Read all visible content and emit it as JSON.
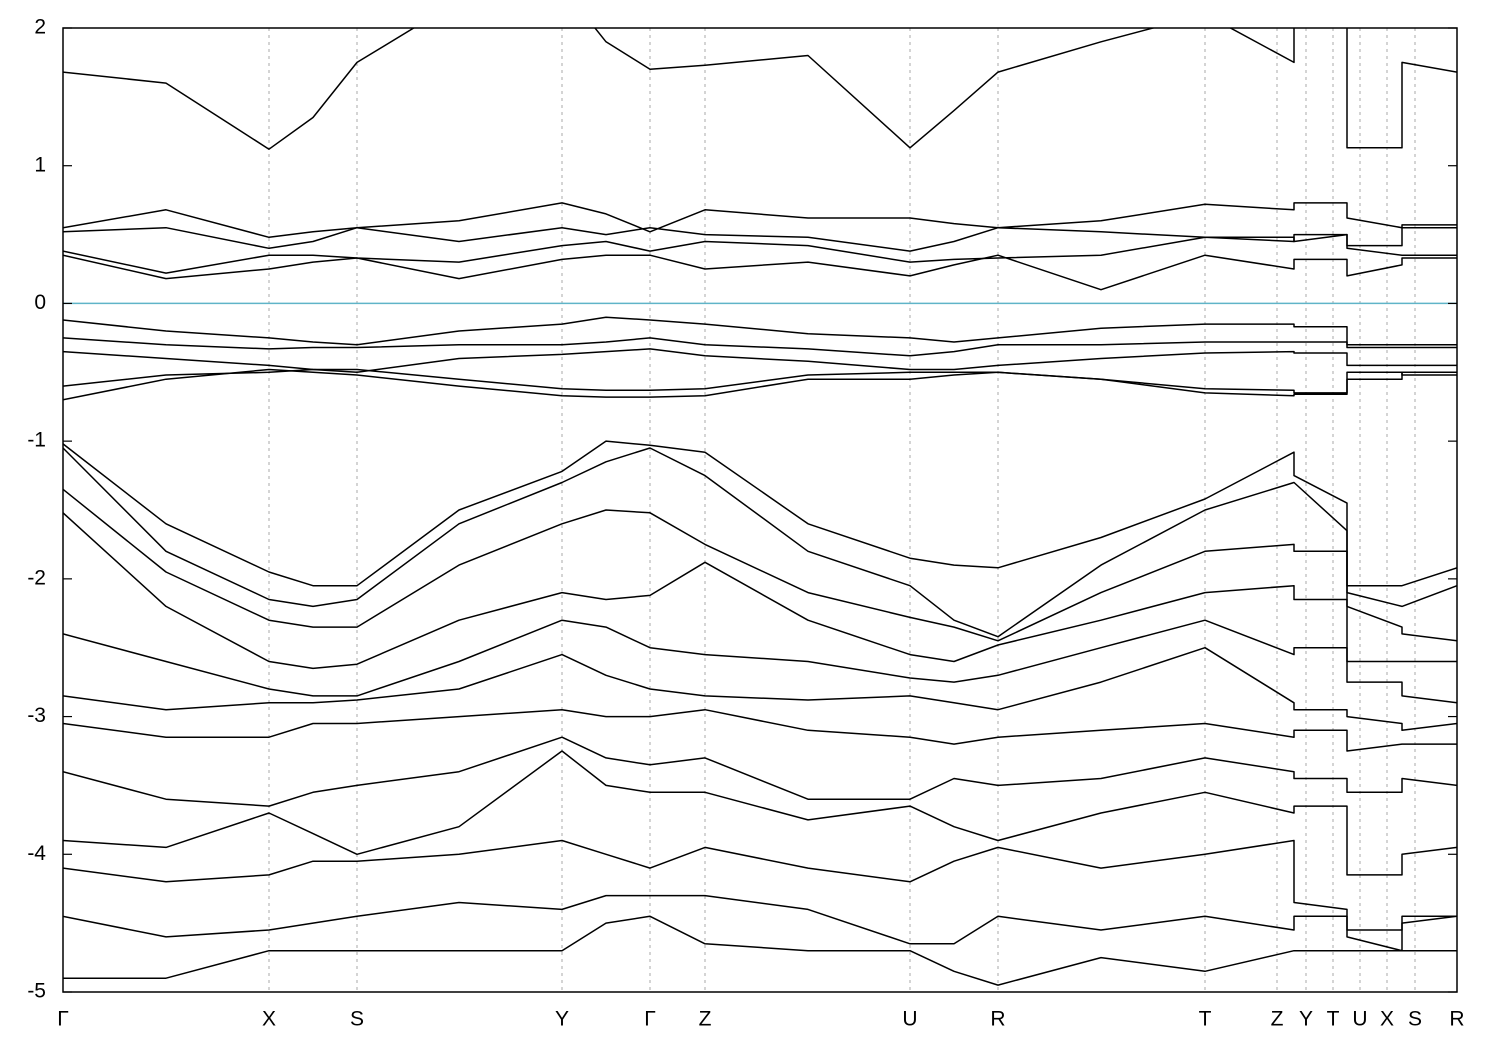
{
  "chart_data": {
    "type": "line",
    "xlim": [
      0,
      13.94
    ],
    "ylim": [
      -5,
      2
    ],
    "yticks": [
      -5,
      -4,
      -3,
      -2,
      -1,
      0,
      1,
      2
    ],
    "xticks": [
      {
        "value": 0,
        "label": "Γ"
      },
      {
        "value": 2.06,
        "label": "X"
      },
      {
        "value": 2.94,
        "label": "S"
      },
      {
        "value": 4.99,
        "label": "Y"
      },
      {
        "value": 5.87,
        "label": "Γ"
      },
      {
        "value": 6.42,
        "label": "Z"
      },
      {
        "value": 8.47,
        "label": "U"
      },
      {
        "value": 9.35,
        "label": "R"
      },
      {
        "value": 11.42,
        "label": "T"
      },
      {
        "value": 12.14,
        "label": "Z"
      },
      {
        "value": 12.43,
        "label": "Y"
      },
      {
        "value": 12.7,
        "label": "T"
      },
      {
        "value": 12.97,
        "label": "U"
      },
      {
        "value": 13.24,
        "label": "X"
      },
      {
        "value": 13.52,
        "label": "S"
      },
      {
        "value": 13.94,
        "label": "R"
      }
    ],
    "grid": true,
    "reference_line": 0,
    "reference_color": "#5fb4c8",
    "x": [
      0,
      1.03,
      2.06,
      2.5,
      2.94,
      3.96,
      4.99,
      5.43,
      5.87,
      6.42,
      7.45,
      8.47,
      8.91,
      9.35,
      10.38,
      11.42,
      12.31,
      12.31,
      12.84,
      12.84,
      13.39,
      13.39,
      13.94
    ],
    "series": [
      {
        "color": "#000000",
        "values": [
          1.68,
          1.6,
          1.12,
          1.35,
          1.75,
          2.2,
          2.3,
          1.9,
          1.7,
          1.73,
          1.8,
          1.13,
          1.4,
          1.68,
          1.9,
          2.1,
          1.75,
          2.2,
          2.2,
          1.13,
          1.13,
          1.75,
          1.68
        ]
      },
      {
        "color": "#000000",
        "values": [
          0.55,
          0.68,
          0.48,
          0.52,
          0.55,
          0.6,
          0.73,
          0.65,
          0.52,
          0.68,
          0.62,
          0.62,
          0.58,
          0.55,
          0.6,
          0.72,
          0.68,
          0.73,
          0.73,
          0.62,
          0.55,
          0.57,
          0.57
        ]
      },
      {
        "color": "#000000",
        "values": [
          0.52,
          0.55,
          0.4,
          0.45,
          0.55,
          0.45,
          0.55,
          0.5,
          0.55,
          0.5,
          0.48,
          0.38,
          0.45,
          0.55,
          0.52,
          0.48,
          0.48,
          0.45,
          0.5,
          0.42,
          0.42,
          0.55,
          0.55
        ]
      },
      {
        "color": "#000000",
        "values": [
          0.38,
          0.22,
          0.35,
          0.35,
          0.33,
          0.3,
          0.42,
          0.45,
          0.38,
          0.45,
          0.42,
          0.3,
          0.32,
          0.33,
          0.35,
          0.48,
          0.45,
          0.5,
          0.5,
          0.4,
          0.35,
          0.35,
          0.35
        ]
      },
      {
        "color": "#000000",
        "values": [
          0.35,
          0.18,
          0.25,
          0.3,
          0.33,
          0.18,
          0.32,
          0.35,
          0.35,
          0.25,
          0.3,
          0.2,
          0.28,
          0.35,
          0.1,
          0.35,
          0.25,
          0.32,
          0.32,
          0.2,
          0.28,
          0.33,
          0.33
        ]
      },
      {
        "color": "#000000",
        "values": [
          -0.12,
          -0.2,
          -0.25,
          -0.28,
          -0.3,
          -0.2,
          -0.15,
          -0.1,
          -0.12,
          -0.15,
          -0.22,
          -0.25,
          -0.28,
          -0.25,
          -0.18,
          -0.15,
          -0.15,
          -0.17,
          -0.17,
          -0.3,
          -0.3,
          -0.3,
          -0.3
        ]
      },
      {
        "color": "#000000",
        "values": [
          -0.25,
          -0.3,
          -0.33,
          -0.32,
          -0.32,
          -0.3,
          -0.3,
          -0.28,
          -0.25,
          -0.3,
          -0.33,
          -0.38,
          -0.35,
          -0.3,
          -0.3,
          -0.28,
          -0.28,
          -0.28,
          -0.28,
          -0.32,
          -0.32,
          -0.32,
          -0.32
        ]
      },
      {
        "color": "#000000",
        "values": [
          -0.35,
          -0.4,
          -0.45,
          -0.48,
          -0.5,
          -0.4,
          -0.37,
          -0.35,
          -0.33,
          -0.38,
          -0.42,
          -0.48,
          -0.48,
          -0.45,
          -0.4,
          -0.36,
          -0.35,
          -0.36,
          -0.36,
          -0.45,
          -0.45,
          -0.45,
          -0.45
        ]
      },
      {
        "color": "#000000",
        "values": [
          -0.6,
          -0.52,
          -0.5,
          -0.48,
          -0.48,
          -0.55,
          -0.62,
          -0.63,
          -0.63,
          -0.62,
          -0.52,
          -0.5,
          -0.5,
          -0.5,
          -0.55,
          -0.62,
          -0.63,
          -0.65,
          -0.65,
          -0.5,
          -0.5,
          -0.52,
          -0.52
        ]
      },
      {
        "color": "#000000",
        "values": [
          -0.7,
          -0.55,
          -0.48,
          -0.5,
          -0.52,
          -0.6,
          -0.67,
          -0.68,
          -0.68,
          -0.67,
          -0.55,
          -0.55,
          -0.52,
          -0.5,
          -0.55,
          -0.65,
          -0.67,
          -0.66,
          -0.66,
          -0.55,
          -0.55,
          -0.5,
          -0.5
        ]
      },
      {
        "color": "#000000",
        "values": [
          -1.02,
          -1.6,
          -1.95,
          -2.05,
          -2.05,
          -1.5,
          -1.22,
          -1.0,
          -1.03,
          -1.08,
          -1.6,
          -1.85,
          -1.9,
          -1.92,
          -1.7,
          -1.42,
          -1.08,
          -1.25,
          -1.45,
          -2.05,
          -2.05,
          -2.05,
          -1.92
        ]
      },
      {
        "color": "#000000",
        "values": [
          -1.05,
          -1.8,
          -2.15,
          -2.2,
          -2.15,
          -1.6,
          -1.3,
          -1.15,
          -1.05,
          -1.25,
          -1.8,
          -2.05,
          -2.3,
          -2.42,
          -1.9,
          -1.5,
          -1.3,
          -1.3,
          -1.65,
          -2.1,
          -2.2,
          -2.2,
          -2.05
        ]
      },
      {
        "color": "#000000",
        "values": [
          -1.35,
          -1.95,
          -2.3,
          -2.35,
          -2.35,
          -1.9,
          -1.6,
          -1.5,
          -1.52,
          -1.75,
          -2.1,
          -2.28,
          -2.35,
          -2.45,
          -2.1,
          -1.8,
          -1.75,
          -1.8,
          -1.8,
          -2.2,
          -2.35,
          -2.4,
          -2.45
        ]
      },
      {
        "color": "#000000",
        "values": [
          -1.52,
          -2.2,
          -2.6,
          -2.65,
          -2.62,
          -2.3,
          -2.1,
          -2.15,
          -2.12,
          -1.88,
          -2.3,
          -2.55,
          -2.6,
          -2.48,
          -2.3,
          -2.1,
          -2.05,
          -2.15,
          -2.15,
          -2.6,
          -2.6,
          -2.6,
          -2.6
        ]
      },
      {
        "color": "#000000",
        "values": [
          -2.4,
          -2.6,
          -2.8,
          -2.85,
          -2.85,
          -2.6,
          -2.3,
          -2.35,
          -2.5,
          -2.55,
          -2.6,
          -2.72,
          -2.75,
          -2.7,
          -2.5,
          -2.3,
          -2.55,
          -2.5,
          -2.5,
          -2.75,
          -2.75,
          -2.85,
          -2.9
        ]
      },
      {
        "color": "#000000",
        "values": [
          -2.85,
          -2.95,
          -2.9,
          -2.9,
          -2.88,
          -2.8,
          -2.55,
          -2.7,
          -2.8,
          -2.85,
          -2.88,
          -2.85,
          -2.9,
          -2.95,
          -2.75,
          -2.5,
          -2.9,
          -2.95,
          -2.95,
          -3.0,
          -3.05,
          -3.1,
          -3.05
        ]
      },
      {
        "color": "#000000",
        "values": [
          -3.05,
          -3.15,
          -3.15,
          -3.05,
          -3.05,
          -3.0,
          -2.95,
          -3.0,
          -3.0,
          -2.95,
          -3.1,
          -3.15,
          -3.2,
          -3.15,
          -3.1,
          -3.05,
          -3.15,
          -3.1,
          -3.1,
          -3.25,
          -3.2,
          -3.2,
          -3.2
        ]
      },
      {
        "color": "#000000",
        "values": [
          -3.4,
          -3.6,
          -3.65,
          -3.55,
          -3.5,
          -3.4,
          -3.15,
          -3.3,
          -3.35,
          -3.3,
          -3.6,
          -3.6,
          -3.45,
          -3.5,
          -3.45,
          -3.3,
          -3.4,
          -3.45,
          -3.45,
          -3.55,
          -3.55,
          -3.45,
          -3.5
        ]
      },
      {
        "color": "#000000",
        "values": [
          -3.9,
          -3.95,
          -3.7,
          -3.85,
          -4.0,
          -3.8,
          -3.25,
          -3.5,
          -3.55,
          -3.55,
          -3.75,
          -3.65,
          -3.8,
          -3.9,
          -3.7,
          -3.55,
          -3.7,
          -3.65,
          -3.65,
          -4.15,
          -4.15,
          -4.0,
          -3.95
        ]
      },
      {
        "color": "#000000",
        "values": [
          -4.1,
          -4.2,
          -4.15,
          -4.05,
          -4.05,
          -4.0,
          -3.9,
          -4.0,
          -4.1,
          -3.95,
          -4.1,
          -4.2,
          -4.05,
          -3.95,
          -4.1,
          -4.0,
          -3.9,
          -4.35,
          -4.4,
          -4.55,
          -4.55,
          -4.45,
          -4.45
        ]
      },
      {
        "color": "#000000",
        "values": [
          -4.45,
          -4.6,
          -4.55,
          -4.5,
          -4.45,
          -4.35,
          -4.4,
          -4.3,
          -4.3,
          -4.3,
          -4.4,
          -4.65,
          -4.65,
          -4.45,
          -4.55,
          -4.45,
          -4.55,
          -4.45,
          -4.45,
          -4.6,
          -4.7,
          -4.5,
          -4.45
        ]
      },
      {
        "color": "#000000",
        "values": [
          -4.9,
          -4.9,
          -4.7,
          -4.7,
          -4.7,
          -4.7,
          -4.7,
          -4.5,
          -4.45,
          -4.65,
          -4.7,
          -4.7,
          -4.85,
          -4.95,
          -4.75,
          -4.85,
          -4.7,
          -4.7,
          -4.7,
          -4.7,
          -4.7,
          -4.7,
          -4.7
        ]
      }
    ]
  }
}
